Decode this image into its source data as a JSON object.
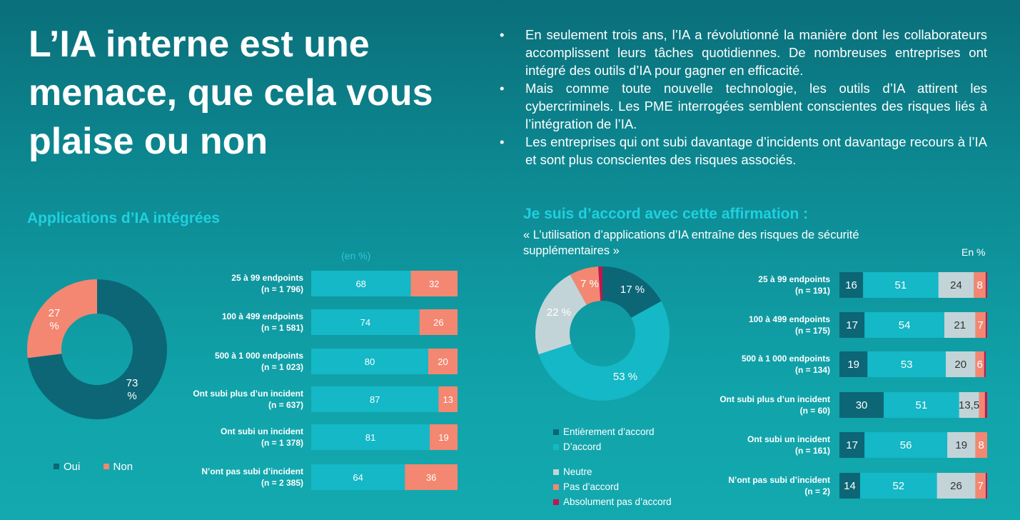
{
  "header": {
    "title": "L’IA interne est une menace, que cela vous plaise ou non",
    "bullets": [
      "En seulement trois ans, l’IA a révolutionné la manière dont les collaborateurs accomplissent leurs tâches quotidiennes. De nombreuses entreprises ont intégré des outils d’IA pour gagner en efficacité.",
      "Mais comme toute nouvelle technologie, les outils d’IA attirent les cybercriminels. Les PME interrogées semblent conscientes des risques liés à l’intégration de l’IA.",
      "Les entreprises qui ont subi davantage d’incidents ont davantage recours à l’IA et sont plus conscientes des risques associés."
    ]
  },
  "colors": {
    "dark": "#0c6676",
    "cyan": "#14b8c6",
    "salmon": "#f38771",
    "grey": "#c3d4d8",
    "magenta": "#c4144f"
  },
  "left": {
    "title": "Applications d’IA intégrées",
    "unit": "(en %)"
  },
  "right": {
    "title": "Je suis d’accord avec cette affirmation :",
    "subtitle": "« L’utilisation d’applications d’IA entraîne des risques de sécurité supplémentaires »",
    "unit": "En %"
  },
  "chart_data": [
    {
      "type": "pie",
      "variant": "donut",
      "labels": [
        "Oui",
        "Non"
      ],
      "values": [
        73,
        27
      ],
      "data_labels": [
        "73 %",
        "27 %"
      ],
      "legend": "bottom"
    },
    {
      "type": "bar",
      "orientation": "horizontal",
      "stacked": true,
      "categories": [
        "25 à 99 endpoints (n = 1 796)",
        "100 à 499 endpoints (n = 1 581)",
        "500 à 1 000 endpoints (n = 1 023)",
        "Ont subi plus d’un incident (n = 637)",
        "Ont subi un incident (n = 1 378)",
        "N’ont pas subi d’incident (n = 2 385)"
      ],
      "series": [
        {
          "name": "Oui",
          "values": [
            68,
            74,
            80,
            87,
            81,
            64
          ]
        },
        {
          "name": "Non",
          "values": [
            32,
            26,
            20,
            13,
            19,
            36
          ]
        }
      ],
      "xlim": [
        0,
        100
      ]
    },
    {
      "type": "pie",
      "variant": "donut",
      "labels": [
        "Entièrement d’accord",
        "D’accord",
        "Neutre",
        "Pas d’accord",
        "Absolument pas d’accord"
      ],
      "values": [
        17,
        53,
        22,
        7,
        1
      ],
      "data_labels": [
        "17 %",
        "53 %",
        "22 %",
        "7 %",
        ""
      ],
      "legend": "bottom-left"
    },
    {
      "type": "bar",
      "orientation": "horizontal",
      "stacked": true,
      "categories": [
        "25 à 99 endpoints (n = 191)",
        "100 à 499 endpoints (n = 175)",
        "500 à 1 000 endpoints (n = 134)",
        "Ont subi plus d’un incident (n = 60)",
        "Ont subi un incident (n = 161)",
        "N’ont pas subi d’incident (n = 2)"
      ],
      "series": [
        {
          "name": "Entièrement d’accord",
          "values": [
            16,
            17,
            19,
            30,
            17,
            14
          ]
        },
        {
          "name": "D’accord",
          "values": [
            51,
            54,
            53,
            51,
            56,
            52
          ]
        },
        {
          "name": "Neutre",
          "values": [
            24,
            21,
            20,
            13.5,
            19,
            26
          ]
        },
        {
          "name": "Pas d’accord",
          "values": [
            8,
            7,
            6,
            4,
            8,
            7
          ]
        },
        {
          "name": "Absolument pas d’accord",
          "values": [
            1,
            1,
            1,
            1.5,
            0,
            1
          ]
        }
      ],
      "value_labels": [
        [
          "16",
          "51",
          "24",
          "8",
          ""
        ],
        [
          "17",
          "54",
          "21",
          "7",
          ""
        ],
        [
          "19",
          "53",
          "20",
          "6",
          ""
        ],
        [
          "30",
          "51",
          "13,5",
          "",
          ""
        ],
        [
          "17",
          "56",
          "19",
          "8",
          ""
        ],
        [
          "14",
          "52",
          "26",
          "7",
          ""
        ]
      ],
      "xlim": [
        0,
        100
      ]
    }
  ]
}
